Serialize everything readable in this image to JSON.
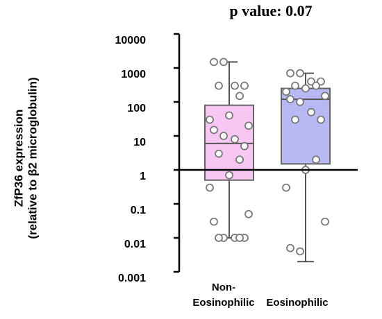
{
  "chart_data": {
    "type": "box",
    "title": "p value: 0.07",
    "y_label_lines": [
      "ZfP36 expression",
      "(relative to β2 microglobulin)"
    ],
    "categories": [
      [
        "Non-",
        "Eosinophilic"
      ],
      [
        "Eosinophilic"
      ]
    ],
    "log_scale": true,
    "ylim": [
      0.001,
      10000
    ],
    "yticks": [
      0.001,
      0.01,
      0.1,
      1,
      10,
      100,
      1000,
      10000
    ],
    "reference_line": 1,
    "series": [
      {
        "color": "#f7c6f2",
        "box": {
          "whislo": 0.01,
          "q1": 0.5,
          "median": 6,
          "q3": 80,
          "whishi": 1500
        },
        "points": [
          1500,
          1500,
          300,
          300,
          300,
          150,
          40,
          30,
          20,
          15,
          10,
          8,
          5,
          3,
          2,
          0.7,
          0.3,
          0.05,
          0.03,
          0.01,
          0.01,
          0.01,
          0.01,
          0.01
        ]
      },
      {
        "color": "#b8b8f4",
        "box": {
          "whislo": 0.002,
          "q1": 1.5,
          "median": 120,
          "q3": 250,
          "whishi": 700
        },
        "points": [
          700,
          700,
          400,
          400,
          300,
          300,
          250,
          200,
          150,
          120,
          100,
          50,
          30,
          30,
          2,
          1,
          0.3,
          0.03,
          0.005,
          0.004
        ]
      }
    ]
  }
}
